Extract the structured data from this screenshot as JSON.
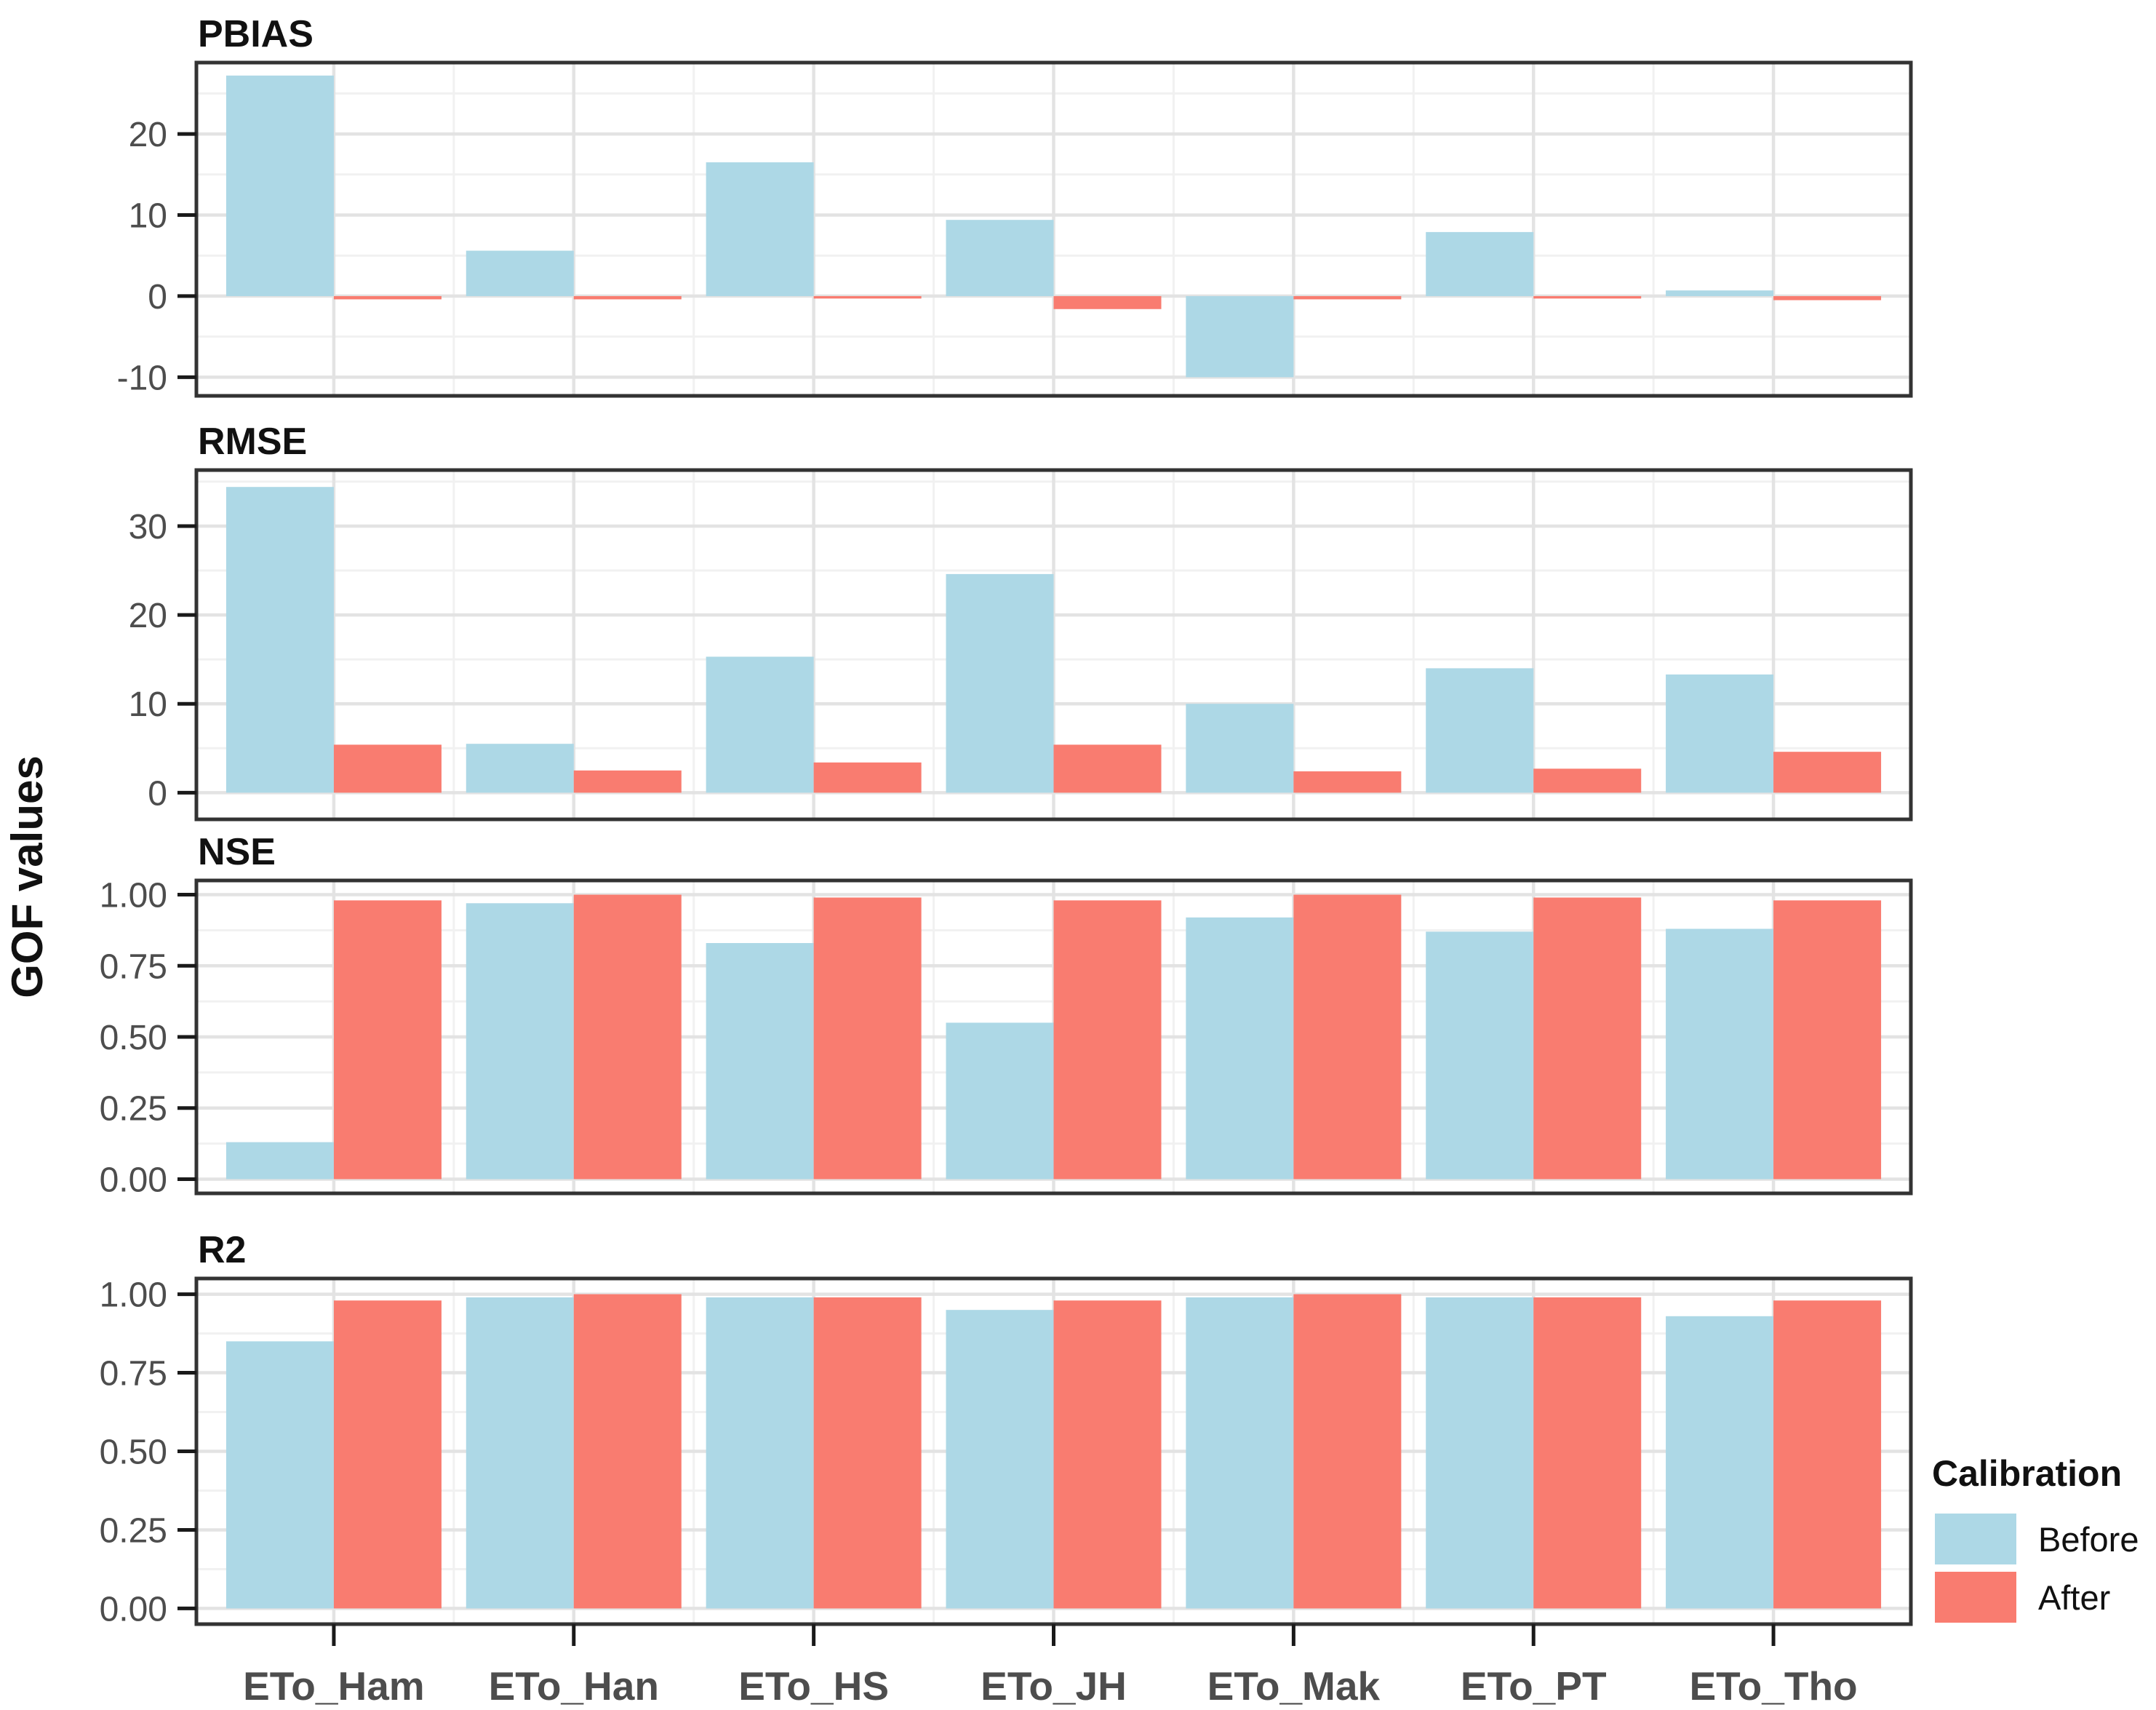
{
  "figure": {
    "y_axis_title": "GOF values",
    "colors": {
      "before": "#ADD8E6",
      "after": "#F97C70",
      "panel_border": "#333333",
      "grid_major": "#E3E3E3",
      "grid_minor": "#F1F1F1",
      "tick": "#1A1A1A",
      "axis_text": "#4D4D4D",
      "title_text": "#111111"
    },
    "legend": {
      "title": "Calibration",
      "items": [
        {
          "label": "Before",
          "color_key": "before"
        },
        {
          "label": "After",
          "color_key": "after"
        }
      ]
    }
  },
  "chart_data": {
    "type": "bar",
    "layout": "4 stacked facet panels, grouped (dodged) bars, legend right",
    "grid": true,
    "categories": [
      "ETo_Ham",
      "ETo_Han",
      "ETo_HS",
      "ETo_JH",
      "ETo_Mak",
      "ETo_PT",
      "ETo_Tho"
    ],
    "series_names": [
      "Before",
      "After"
    ],
    "ylabel": "GOF values",
    "panels": [
      {
        "id": "pbias",
        "title": "PBIAS",
        "ylim": [
          -12.3,
          28.8
        ],
        "yticks": [
          {
            "v": 20,
            "label": "20"
          },
          {
            "v": 10,
            "label": "10"
          },
          {
            "v": 0,
            "label": "0"
          },
          {
            "v": -10,
            "label": "-10"
          }
        ],
        "minor_ticks": [
          25,
          15,
          5,
          -5
        ],
        "series": [
          {
            "name": "Before",
            "values": [
              27.2,
              5.6,
              16.5,
              9.4,
              -10.0,
              7.9,
              0.7
            ]
          },
          {
            "name": "After",
            "values": [
              -0.4,
              -0.4,
              -0.3,
              -1.6,
              -0.4,
              -0.3,
              -0.5
            ]
          }
        ]
      },
      {
        "id": "rmse",
        "title": "RMSE",
        "ylim": [
          -3.0,
          36.3
        ],
        "yticks": [
          {
            "v": 30,
            "label": "30"
          },
          {
            "v": 20,
            "label": "20"
          },
          {
            "v": 10,
            "label": "10"
          },
          {
            "v": 0,
            "label": "0"
          }
        ],
        "minor_ticks": [
          35,
          25,
          15,
          5
        ],
        "series": [
          {
            "name": "Before",
            "values": [
              34.4,
              5.5,
              15.3,
              24.6,
              10.0,
              14.0,
              13.3
            ]
          },
          {
            "name": "After",
            "values": [
              5.4,
              2.5,
              3.4,
              5.4,
              2.4,
              2.7,
              4.6
            ]
          }
        ]
      },
      {
        "id": "nse",
        "title": "NSE",
        "ylim": [
          -0.05,
          1.05
        ],
        "yticks": [
          {
            "v": 1.0,
            "label": "1.00"
          },
          {
            "v": 0.75,
            "label": "0.75"
          },
          {
            "v": 0.5,
            "label": "0.50"
          },
          {
            "v": 0.25,
            "label": "0.25"
          },
          {
            "v": 0.0,
            "label": "0.00"
          }
        ],
        "minor_ticks": [
          0.875,
          0.625,
          0.375,
          0.125
        ],
        "series": [
          {
            "name": "Before",
            "values": [
              0.13,
              0.97,
              0.83,
              0.55,
              0.92,
              0.87,
              0.88
            ]
          },
          {
            "name": "After",
            "values": [
              0.98,
              1.0,
              0.99,
              0.98,
              1.0,
              0.99,
              0.98
            ]
          }
        ]
      },
      {
        "id": "r2",
        "title": "R2",
        "ylim": [
          -0.05,
          1.05
        ],
        "yticks": [
          {
            "v": 1.0,
            "label": "1.00"
          },
          {
            "v": 0.75,
            "label": "0.75"
          },
          {
            "v": 0.5,
            "label": "0.50"
          },
          {
            "v": 0.25,
            "label": "0.25"
          },
          {
            "v": 0.0,
            "label": "0.00"
          }
        ],
        "minor_ticks": [
          0.875,
          0.625,
          0.375,
          0.125
        ],
        "series": [
          {
            "name": "Before",
            "values": [
              0.85,
              0.99,
              0.99,
              0.95,
              0.99,
              0.99,
              0.93
            ]
          },
          {
            "name": "After",
            "values": [
              0.98,
              1.0,
              0.99,
              0.98,
              1.0,
              0.99,
              0.98
            ]
          }
        ]
      }
    ]
  }
}
